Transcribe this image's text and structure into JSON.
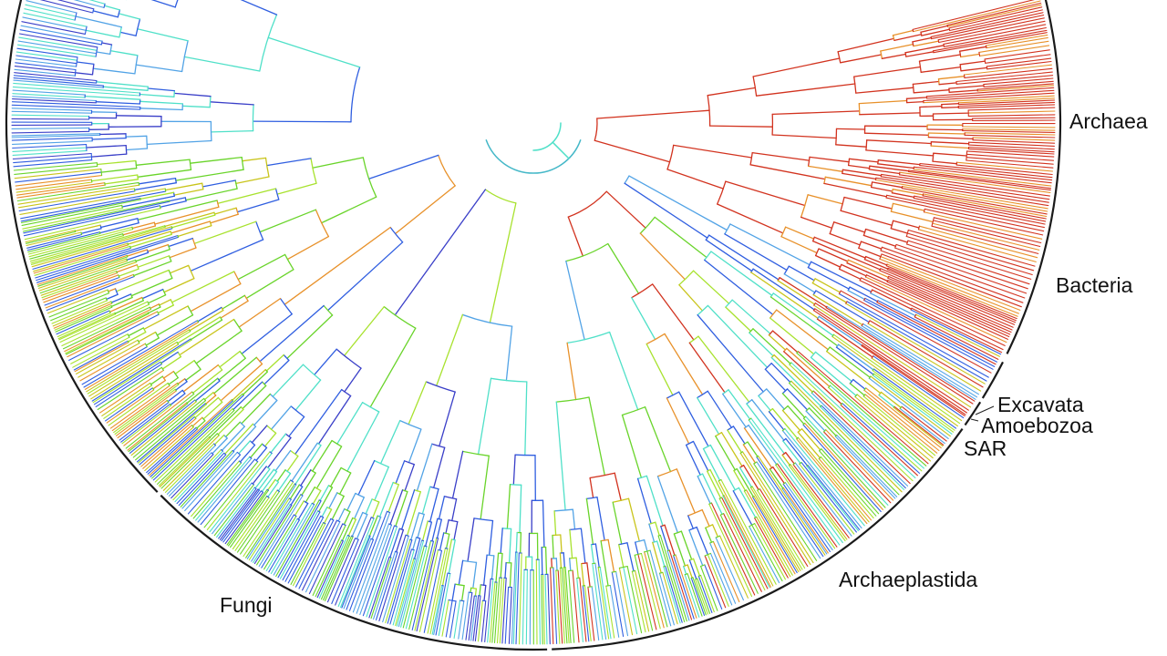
{
  "clade_labels": {
    "archaea": "Archaea",
    "bacteria": "Bacteria",
    "excavata": "Excavata",
    "amoebozoa": "Amoebozoa",
    "sar": "SAR",
    "archaeplastida": "Archaeplastida",
    "fungi": "Fungi"
  },
  "colors": {
    "red": "#d2331f",
    "orange": "#e8912a",
    "yellow": "#c9c41a",
    "green": "#69d42a",
    "lime": "#a8e22e",
    "cyan": "#4fe0c8",
    "teal": "#45b8c8",
    "lightblue": "#52a3e6",
    "blue": "#2f5ee0",
    "indigo": "#3a3fc8",
    "rim": "#1a1a1a"
  }
}
